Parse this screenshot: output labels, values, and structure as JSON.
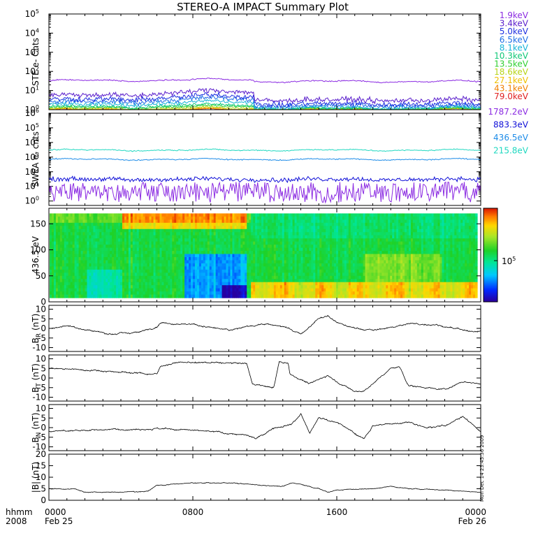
{
  "title": "STEREO-A IMPACT Summary Plot",
  "stamp": "Mon Dec 14 23:45:36 2009",
  "x_axis": {
    "corner_top": "hhmm",
    "corner_bottom": "2008",
    "ticks": [
      {
        "hours": 0,
        "label": "0000",
        "date": "Feb 25"
      },
      {
        "hours": 8,
        "label": "0800",
        "date": ""
      },
      {
        "hours": 16,
        "label": "1600",
        "date": ""
      },
      {
        "hours": 24,
        "label": "0000",
        "date": "Feb 26"
      }
    ]
  },
  "chart_data": [
    {
      "id": "ste",
      "type": "line",
      "ylabel": "STE e- Cnts",
      "yscale": "log",
      "ylim": [
        1,
        100000
      ],
      "yticks": [
        "10^0",
        "10^1",
        "10^2",
        "10^3",
        "10^4",
        "10^5"
      ],
      "series": [
        {
          "name": "1.9keV",
          "color": "#8b2be2",
          "level": 30,
          "noise": 0.05,
          "bump": 0.25
        },
        {
          "name": "3.4keV",
          "color": "#5a1ecc",
          "level": 3.2,
          "noise": 0.22,
          "bump": 1.9
        },
        {
          "name": "5.0keV",
          "color": "#2030e0",
          "level": 2.0,
          "noise": 0.22,
          "bump": 1.7
        },
        {
          "name": "6.5keV",
          "color": "#1f6fe6",
          "level": 1.6,
          "noise": 0.2,
          "bump": 1.4
        },
        {
          "name": "8.1keV",
          "color": "#18b4d8",
          "level": 1.3,
          "noise": 0.15,
          "bump": 1.0
        },
        {
          "name": "10.3keV",
          "color": "#10c878",
          "level": 1.15,
          "noise": 0.12,
          "bump": 0.6
        },
        {
          "name": "13.5keV",
          "color": "#30d030",
          "level": 1.1,
          "noise": 0.1,
          "bump": 0.4
        },
        {
          "name": "18.6keV",
          "color": "#b8d418",
          "level": 1.05,
          "noise": 0.08,
          "bump": 0.2
        },
        {
          "name": "27.1keV",
          "color": "#f0c000",
          "level": 1.0,
          "noise": 0.05,
          "bump": 0.1
        },
        {
          "name": "43.1keV",
          "color": "#f08000",
          "level": 1.0,
          "noise": 0.03,
          "bump": 0.0
        },
        {
          "name": "79.0keV",
          "color": "#e02020",
          "level": 1.0,
          "noise": 0.02,
          "bump": 0.0
        }
      ]
    },
    {
      "id": "swea",
      "type": "line",
      "ylabel": "SWEA e- cnts",
      "yscale": "log",
      "ylim": [
        0.5,
        1000000
      ],
      "yticks": [
        "10^0",
        "10^1",
        "10^2",
        "10^3",
        "10^4",
        "10^5",
        "10^6"
      ],
      "series": [
        {
          "name": "1787.2eV",
          "color": "#8b2be2",
          "level": 2.5,
          "noise": 1.0,
          "bump": 0
        },
        {
          "name": "883.3eV",
          "color": "#1010d8",
          "level": 30,
          "noise": 0.25,
          "bump": 0
        },
        {
          "name": "436.5eV",
          "color": "#1e8ce8",
          "level": 700,
          "noise": 0.06,
          "bump": 0
        },
        {
          "name": "215.8eV",
          "color": "#20d8c0",
          "level": 3000,
          "noise": 0.06,
          "bump": 0
        }
      ]
    },
    {
      "id": "pad",
      "type": "heatmap",
      "ylabel": "436.5 eV",
      "ylim": [
        0,
        180
      ],
      "yticks": [
        0,
        50,
        100,
        150
      ],
      "colorbar_label": "10^5"
    },
    {
      "id": "br",
      "type": "line",
      "ylabel": "B_R (nT)",
      "ylim": [
        -12,
        12
      ],
      "yticks": [
        -10,
        -5,
        0,
        5,
        10
      ],
      "keypoints": [
        [
          0,
          0
        ],
        [
          1,
          1.5
        ],
        [
          2,
          -0.5
        ],
        [
          3.5,
          -3
        ],
        [
          5,
          -2
        ],
        [
          6,
          1
        ],
        [
          6.2,
          3
        ],
        [
          8,
          2
        ],
        [
          10,
          -1
        ],
        [
          11,
          1
        ],
        [
          12,
          2.5
        ],
        [
          13,
          1
        ],
        [
          14,
          -3
        ],
        [
          15,
          5
        ],
        [
          15.5,
          6.5
        ],
        [
          16,
          3
        ],
        [
          17,
          0
        ],
        [
          18,
          -1
        ],
        [
          19,
          0.5
        ],
        [
          20,
          2.5
        ],
        [
          21.5,
          2
        ],
        [
          22.5,
          0
        ],
        [
          23.5,
          -2
        ],
        [
          24,
          -1
        ]
      ]
    },
    {
      "id": "bt",
      "type": "line",
      "ylabel": "B_T (nT)",
      "ylim": [
        -12,
        12
      ],
      "yticks": [
        -10,
        -5,
        0,
        5,
        10
      ],
      "keypoints": [
        [
          0,
          5
        ],
        [
          2.5,
          4
        ],
        [
          6,
          2
        ],
        [
          6.2,
          6
        ],
        [
          7,
          8
        ],
        [
          9,
          8
        ],
        [
          11,
          7.5
        ],
        [
          11.3,
          -3
        ],
        [
          12.5,
          -5
        ],
        [
          12.8,
          8.5
        ],
        [
          13.3,
          8
        ],
        [
          13.4,
          2
        ],
        [
          14.5,
          -3
        ],
        [
          15.5,
          1.5
        ],
        [
          16,
          -2
        ],
        [
          17,
          -7
        ],
        [
          17.5,
          -7
        ],
        [
          18,
          -3
        ],
        [
          19,
          5
        ],
        [
          19.5,
          5.5
        ],
        [
          20,
          -4
        ],
        [
          22,
          -6
        ],
        [
          23,
          -2
        ],
        [
          24,
          -3
        ]
      ]
    },
    {
      "id": "bn",
      "type": "line",
      "ylabel": "B_N (nT)",
      "ylim": [
        -12,
        12
      ],
      "yticks": [
        -10,
        -5,
        0,
        5,
        10
      ],
      "keypoints": [
        [
          0,
          -2
        ],
        [
          3,
          -1
        ],
        [
          6,
          -0.5
        ],
        [
          9,
          -2
        ],
        [
          11,
          -4
        ],
        [
          11.5,
          -6
        ],
        [
          12.5,
          0
        ],
        [
          13.5,
          2
        ],
        [
          14,
          7
        ],
        [
          14.5,
          -3
        ],
        [
          15,
          5
        ],
        [
          16,
          3
        ],
        [
          17,
          -3
        ],
        [
          17.5,
          -6
        ],
        [
          18,
          1
        ],
        [
          20,
          3
        ],
        [
          21,
          0
        ],
        [
          22,
          1
        ],
        [
          23,
          6
        ],
        [
          23.5,
          2
        ],
        [
          24,
          -2
        ]
      ]
    },
    {
      "id": "bmag",
      "type": "line",
      "ylabel": "|B| (nT)",
      "ylim": [
        0,
        20
      ],
      "yticks": [
        0,
        5,
        10,
        15,
        20
      ],
      "keypoints": [
        [
          0,
          5
        ],
        [
          1.5,
          5
        ],
        [
          2,
          3.5
        ],
        [
          4,
          3.5
        ],
        [
          5.5,
          4
        ],
        [
          6,
          6.5
        ],
        [
          8,
          7.5
        ],
        [
          10,
          7.5
        ],
        [
          11,
          7
        ],
        [
          12,
          6.5
        ],
        [
          13,
          6
        ],
        [
          13.5,
          7.5
        ],
        [
          14,
          7
        ],
        [
          15,
          5
        ],
        [
          15.5,
          3.5
        ],
        [
          16,
          4.5
        ],
        [
          18,
          5
        ],
        [
          19,
          6
        ],
        [
          20,
          5
        ],
        [
          22,
          4.5
        ],
        [
          23,
          4
        ],
        [
          24,
          3.5
        ]
      ]
    }
  ]
}
